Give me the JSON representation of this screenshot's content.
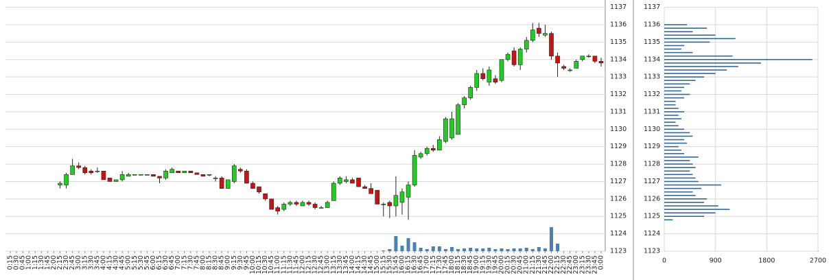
{
  "chart_data": [
    {
      "type": "candlestick",
      "categories": [
        "0:15",
        "0:30",
        "0:45",
        "1:00",
        "1:15",
        "1:30",
        "1:45",
        "2:00",
        "2:15",
        "2:30",
        "2:45",
        "3:00",
        "3:15",
        "3:30",
        "3:45",
        "4:00",
        "4:15",
        "4:30",
        "4:45",
        "5:00",
        "5:15",
        "5:30",
        "5:45",
        "6:00",
        "6:15",
        "6:30",
        "6:45",
        "7:00",
        "7:15",
        "7:30",
        "7:45",
        "8:00",
        "8:15",
        "8:30",
        "8:45",
        "9:00",
        "9:15",
        "9:30",
        "9:45",
        "10:00",
        "10:15",
        "10:30",
        "10:45",
        "11:00",
        "11:15",
        "11:30",
        "11:45",
        "12:00",
        "12:15",
        "12:30",
        "12:45",
        "13:00",
        "13:15",
        "13:30",
        "13:45",
        "14:00",
        "14:15",
        "14:30",
        "14:45",
        "15:00",
        "15:15",
        "15:30",
        "15:45",
        "16:00",
        "16:15",
        "16:30",
        "16:45",
        "17:00",
        "17:15",
        "17:30",
        "17:45",
        "18:00",
        "18:15",
        "18:30",
        "18:45",
        "19:00",
        "19:15",
        "19:30",
        "19:45",
        "20:00",
        "20:15",
        "20:30",
        "20:45",
        "21:00",
        "21:15",
        "21:30",
        "21:45",
        "22:00",
        "22:15",
        "22:30",
        "22:45",
        "23:00",
        "23:15",
        "23:30",
        "23:45",
        "0:00"
      ],
      "open": [
        null,
        null,
        null,
        null,
        null,
        null,
        null,
        null,
        1126.8,
        1126.8,
        1127.4,
        1127.9,
        1127.8,
        1127.6,
        1127.6,
        1127.6,
        1127.2,
        1127.0,
        1127.1,
        1127.3,
        1127.4,
        1127.4,
        1127.4,
        1127.4,
        1127.3,
        1127.2,
        1127.5,
        1127.6,
        1127.5,
        1127.6,
        1127.5,
        1127.4,
        1127.4,
        1127.2,
        1127.2,
        1126.6,
        1127.0,
        1127.7,
        1127.6,
        1126.9,
        1126.7,
        1126.3,
        1126.0,
        1125.5,
        1125.4,
        1125.7,
        1125.8,
        1125.6,
        1125.8,
        1125.7,
        1125.5,
        1125.5,
        1125.9,
        1126.9,
        1127.0,
        1127.1,
        1127.2,
        1126.7,
        1126.6,
        1126.5,
        1125.7,
        1125.8,
        1125.6,
        1125.8,
        1126.1,
        1126.8,
        1128.4,
        1128.6,
        1128.9,
        1128.8,
        1129.3,
        1129.5,
        1129.7,
        1131.4,
        1131.8,
        1132.4,
        1133.2,
        1132.7,
        1132.9,
        1132.8,
        1134.0,
        1134.5,
        1133.7,
        1134.6,
        1135.1,
        1135.8,
        1135.4,
        1135.5,
        1134.2,
        1133.6,
        1133.4,
        1133.5,
        1134.0,
        1134.2,
        1134.2,
        1133.9
      ],
      "high": [
        null,
        null,
        null,
        null,
        null,
        null,
        null,
        null,
        1127.0,
        1127.5,
        1128.3,
        1128.1,
        1127.9,
        1127.7,
        1127.8,
        1127.6,
        1127.2,
        1127.1,
        1127.6,
        1127.5,
        1127.4,
        1127.4,
        1127.4,
        1127.4,
        1127.3,
        1127.7,
        1127.8,
        1127.6,
        1127.6,
        1127.6,
        1127.5,
        1127.4,
        1127.4,
        1127.3,
        1127.3,
        1127.1,
        1128.0,
        1127.8,
        1127.7,
        1127.0,
        1126.7,
        1126.3,
        1126.0,
        1125.6,
        1125.8,
        1125.9,
        1125.9,
        1125.9,
        1125.9,
        1125.8,
        1125.6,
        1125.9,
        1127.0,
        1127.3,
        1127.3,
        1127.2,
        1127.2,
        1126.8,
        1126.9,
        1126.5,
        1125.8,
        1125.9,
        1127.3,
        1126.6,
        1127.0,
        1128.8,
        1128.7,
        1129.0,
        1129.1,
        1129.6,
        1130.7,
        1131.0,
        1131.5,
        1131.9,
        1132.5,
        1133.4,
        1133.5,
        1133.6,
        1133.1,
        1134.0,
        1134.4,
        1134.7,
        1134.7,
        1135.3,
        1136.1,
        1136.1,
        1136.0,
        1135.6,
        1134.4,
        1133.7,
        1133.5,
        1134.0,
        1134.2,
        1134.3,
        1134.2,
        1134.1
      ],
      "low": [
        null,
        null,
        null,
        null,
        null,
        null,
        null,
        null,
        1126.6,
        1126.6,
        1127.4,
        1127.7,
        1127.4,
        1127.4,
        1127.5,
        1127.1,
        1127.0,
        1127.0,
        1127.0,
        1127.3,
        1127.4,
        1127.4,
        1127.4,
        1127.3,
        1126.9,
        1127.1,
        1127.5,
        1127.5,
        1127.5,
        1127.5,
        1127.4,
        1127.3,
        1127.3,
        1127.0,
        1126.6,
        1126.6,
        1126.9,
        1127.5,
        1126.9,
        1126.6,
        1126.3,
        1125.9,
        1125.4,
        1125.1,
        1125.3,
        1125.6,
        1125.6,
        1125.6,
        1125.6,
        1125.4,
        1125.5,
        1125.5,
        1125.9,
        1126.8,
        1126.9,
        1126.9,
        1126.7,
        1126.6,
        1126.3,
        1125.7,
        1125.0,
        1124.9,
        1125.0,
        1125.1,
        1124.8,
        1126.7,
        1128.3,
        1128.5,
        1128.7,
        1128.8,
        1129.2,
        1129.4,
        1129.7,
        1131.2,
        1131.7,
        1132.2,
        1132.8,
        1132.5,
        1132.6,
        1132.7,
        1133.9,
        1133.6,
        1133.4,
        1134.4,
        1135.0,
        1135.3,
        1135.3,
        1134.0,
        1133.0,
        1133.4,
        1133.3,
        1133.5,
        1133.9,
        1134.1,
        1133.8,
        1133.6
      ],
      "close": [
        null,
        null,
        null,
        null,
        null,
        null,
        null,
        null,
        1126.9,
        1127.4,
        1127.9,
        1127.8,
        1127.5,
        1127.5,
        1127.6,
        1127.1,
        1127.0,
        1127.1,
        1127.4,
        1127.4,
        1127.4,
        1127.4,
        1127.4,
        1127.3,
        1127.2,
        1127.6,
        1127.7,
        1127.5,
        1127.6,
        1127.5,
        1127.4,
        1127.3,
        1127.4,
        1127.2,
        1126.6,
        1127.1,
        1127.9,
        1127.6,
        1126.9,
        1126.6,
        1126.4,
        1126.0,
        1125.4,
        1125.3,
        1125.7,
        1125.8,
        1125.7,
        1125.8,
        1125.7,
        1125.5,
        1125.5,
        1125.8,
        1126.9,
        1127.2,
        1127.1,
        1126.9,
        1126.7,
        1126.6,
        1126.3,
        1125.7,
        1125.7,
        1125.6,
        1126.2,
        1126.4,
        1126.8,
        1128.5,
        1128.6,
        1128.9,
        1128.8,
        1129.4,
        1130.6,
        1130.6,
        1131.4,
        1131.8,
        1132.4,
        1133.2,
        1132.9,
        1133.4,
        1132.7,
        1134.0,
        1134.3,
        1133.7,
        1134.6,
        1135.1,
        1135.7,
        1135.5,
        1135.5,
        1134.2,
        1133.8,
        1133.5,
        1133.4,
        1133.9,
        1134.2,
        1134.2,
        1133.9,
        1133.8
      ],
      "volume": [
        null,
        null,
        null,
        null,
        null,
        null,
        null,
        null,
        0,
        0,
        0,
        0,
        0,
        0,
        0,
        0,
        0,
        0,
        0,
        0,
        0,
        0,
        0,
        0,
        0,
        0,
        0,
        0,
        0,
        0,
        0,
        0,
        0,
        0,
        0,
        0,
        0,
        0,
        0,
        0,
        0,
        0,
        0,
        0,
        0,
        0,
        0,
        0,
        0,
        0,
        0,
        0,
        0,
        0,
        0,
        0,
        0,
        0,
        0,
        0,
        1,
        3,
        22,
        8,
        19,
        13,
        5,
        3,
        7,
        7,
        3,
        6,
        3,
        4,
        5,
        4,
        4,
        5,
        3,
        4,
        3,
        4,
        4,
        5,
        3,
        6,
        4,
        35,
        11,
        0,
        0,
        0,
        0,
        0,
        0,
        0
      ],
      "ylim": [
        1123,
        1137
      ],
      "yticks": [
        1123,
        1124,
        1125,
        1126,
        1127,
        1128,
        1129,
        1130,
        1131,
        1132,
        1133,
        1134,
        1135,
        1136,
        1137
      ],
      "up_color": "#22cc22",
      "down_color": "#cc1111",
      "volume_color": "#4682b4",
      "grid": true
    },
    {
      "type": "barh",
      "y": [
        1124.8,
        1125.0,
        1125.2,
        1125.4,
        1125.6,
        1125.8,
        1126.0,
        1126.2,
        1126.4,
        1126.6,
        1126.8,
        1127.0,
        1127.2,
        1127.4,
        1127.6,
        1127.8,
        1128.0,
        1128.2,
        1128.4,
        1128.6,
        1128.8,
        1129.0,
        1129.2,
        1129.4,
        1129.6,
        1129.8,
        1130.0,
        1130.2,
        1130.4,
        1130.6,
        1130.8,
        1131.0,
        1131.2,
        1131.4,
        1131.6,
        1131.8,
        1132.0,
        1132.2,
        1132.4,
        1132.6,
        1132.8,
        1133.0,
        1133.2,
        1133.4,
        1133.6,
        1133.8,
        1134.0,
        1134.2,
        1134.4,
        1134.6,
        1134.8,
        1135.0,
        1135.2,
        1135.4,
        1135.6,
        1135.8,
        1136.0
      ],
      "values": [
        150,
        700,
        900,
        1150,
        950,
        700,
        750,
        550,
        500,
        650,
        1000,
        600,
        550,
        500,
        450,
        550,
        500,
        450,
        600,
        350,
        300,
        250,
        400,
        350,
        500,
        450,
        350,
        250,
        200,
        300,
        250,
        350,
        250,
        200,
        200,
        350,
        450,
        300,
        350,
        450,
        550,
        700,
        900,
        1100,
        1300,
        1700,
        2600,
        1200,
        500,
        300,
        350,
        800,
        1250,
        900,
        500,
        750,
        400
      ],
      "xlim": [
        0,
        2700
      ],
      "xticks": [
        0,
        900,
        1800,
        2700
      ],
      "ylim": [
        1123,
        1137
      ],
      "yticks": [
        1123,
        1124,
        1125,
        1126,
        1127,
        1128,
        1129,
        1130,
        1131,
        1132,
        1133,
        1134,
        1135,
        1136,
        1137
      ],
      "color": "#336699",
      "grid": true
    }
  ]
}
